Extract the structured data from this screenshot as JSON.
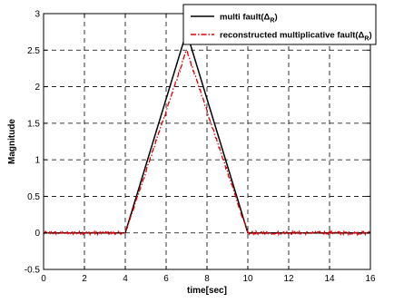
{
  "chart_data": {
    "type": "line",
    "xlabel": "time[sec]",
    "ylabel": "Magnitude",
    "xlim": [
      0,
      16
    ],
    "ylim": [
      -0.5,
      3
    ],
    "xticks": [
      0,
      2,
      4,
      6,
      8,
      10,
      12,
      14,
      16
    ],
    "yticks": [
      -0.5,
      0,
      0.5,
      1,
      1.5,
      2,
      2.5,
      3
    ],
    "xtick_labels": [
      "0",
      "2",
      "4",
      "6",
      "8",
      "10",
      "12",
      "14",
      "16"
    ],
    "ytick_labels": [
      "-0.5",
      "0",
      "0.5",
      "1",
      "1.5",
      "2",
      "2.5",
      "3"
    ],
    "grid": true,
    "grid_style": "dashed",
    "legend_position": "top-right",
    "series": [
      {
        "name": "multi fault",
        "name_symbol": "Δ",
        "name_subscript": "R",
        "color": "#000000",
        "line_style": "solid",
        "x": [
          0,
          4,
          7,
          10,
          16
        ],
        "y": [
          0,
          0,
          2.75,
          0,
          0
        ]
      },
      {
        "name": "reconstructed multiplicative fault",
        "name_symbol": "Δ",
        "name_subscript": "R",
        "color": "#e00000",
        "line_style": "dash-dot",
        "noise_amplitude": 0.02,
        "x": [
          0,
          4,
          7,
          10,
          16
        ],
        "y": [
          0,
          0,
          2.5,
          0,
          0
        ]
      }
    ]
  }
}
